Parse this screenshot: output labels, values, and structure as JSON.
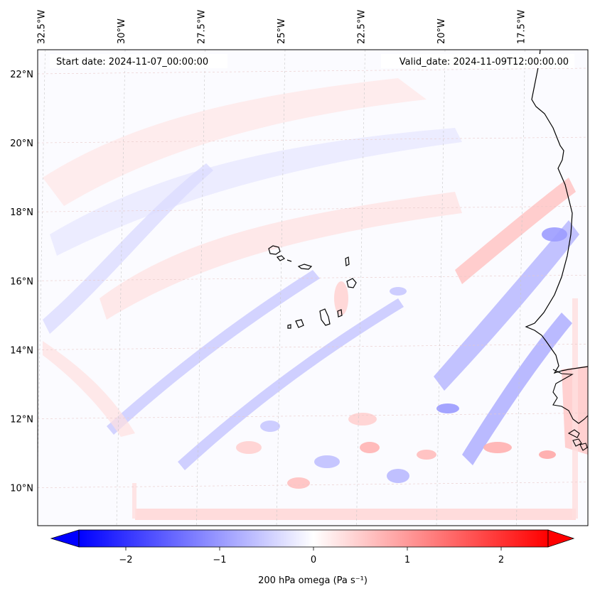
{
  "map": {
    "start_label": "Start date: 2024-11-07_00:00:00",
    "valid_label": "Valid_date: 2024-11-09T12:00:00.00",
    "lon_labels": [
      {
        "value": -32.5,
        "text": "32.5°W"
      },
      {
        "value": -30.0,
        "text": "30°W"
      },
      {
        "value": -27.5,
        "text": "27.5°W"
      },
      {
        "value": -25.0,
        "text": "25°W"
      },
      {
        "value": -22.5,
        "text": "22.5°W"
      },
      {
        "value": -20.0,
        "text": "20°W"
      },
      {
        "value": -17.5,
        "text": "17.5°W"
      }
    ],
    "lat_labels": [
      {
        "value": 22,
        "text": "22°N"
      },
      {
        "value": 20,
        "text": "20°N"
      },
      {
        "value": 18,
        "text": "18°N"
      },
      {
        "value": 16,
        "text": "16°N"
      },
      {
        "value": 14,
        "text": "14°N"
      },
      {
        "value": 12,
        "text": "12°N"
      },
      {
        "value": 10,
        "text": "10°N"
      }
    ],
    "extent": {
      "lon_min": -32.6,
      "lon_max": -15.4,
      "lat_min": 8.9,
      "lat_max": 22.7
    }
  },
  "colorbar": {
    "label": "200 hPa omega (Pa s⁻¹)",
    "ticks": [
      {
        "value": -2,
        "text": "−2"
      },
      {
        "value": -1,
        "text": "−1"
      },
      {
        "value": 0,
        "text": "0"
      },
      {
        "value": 1,
        "text": "1"
      },
      {
        "value": 2,
        "text": "2"
      }
    ],
    "range": [
      -2.5,
      2.5
    ],
    "colormap": [
      "#0000ff",
      "#ffffff",
      "#ff0000"
    ],
    "extend": "both"
  }
}
